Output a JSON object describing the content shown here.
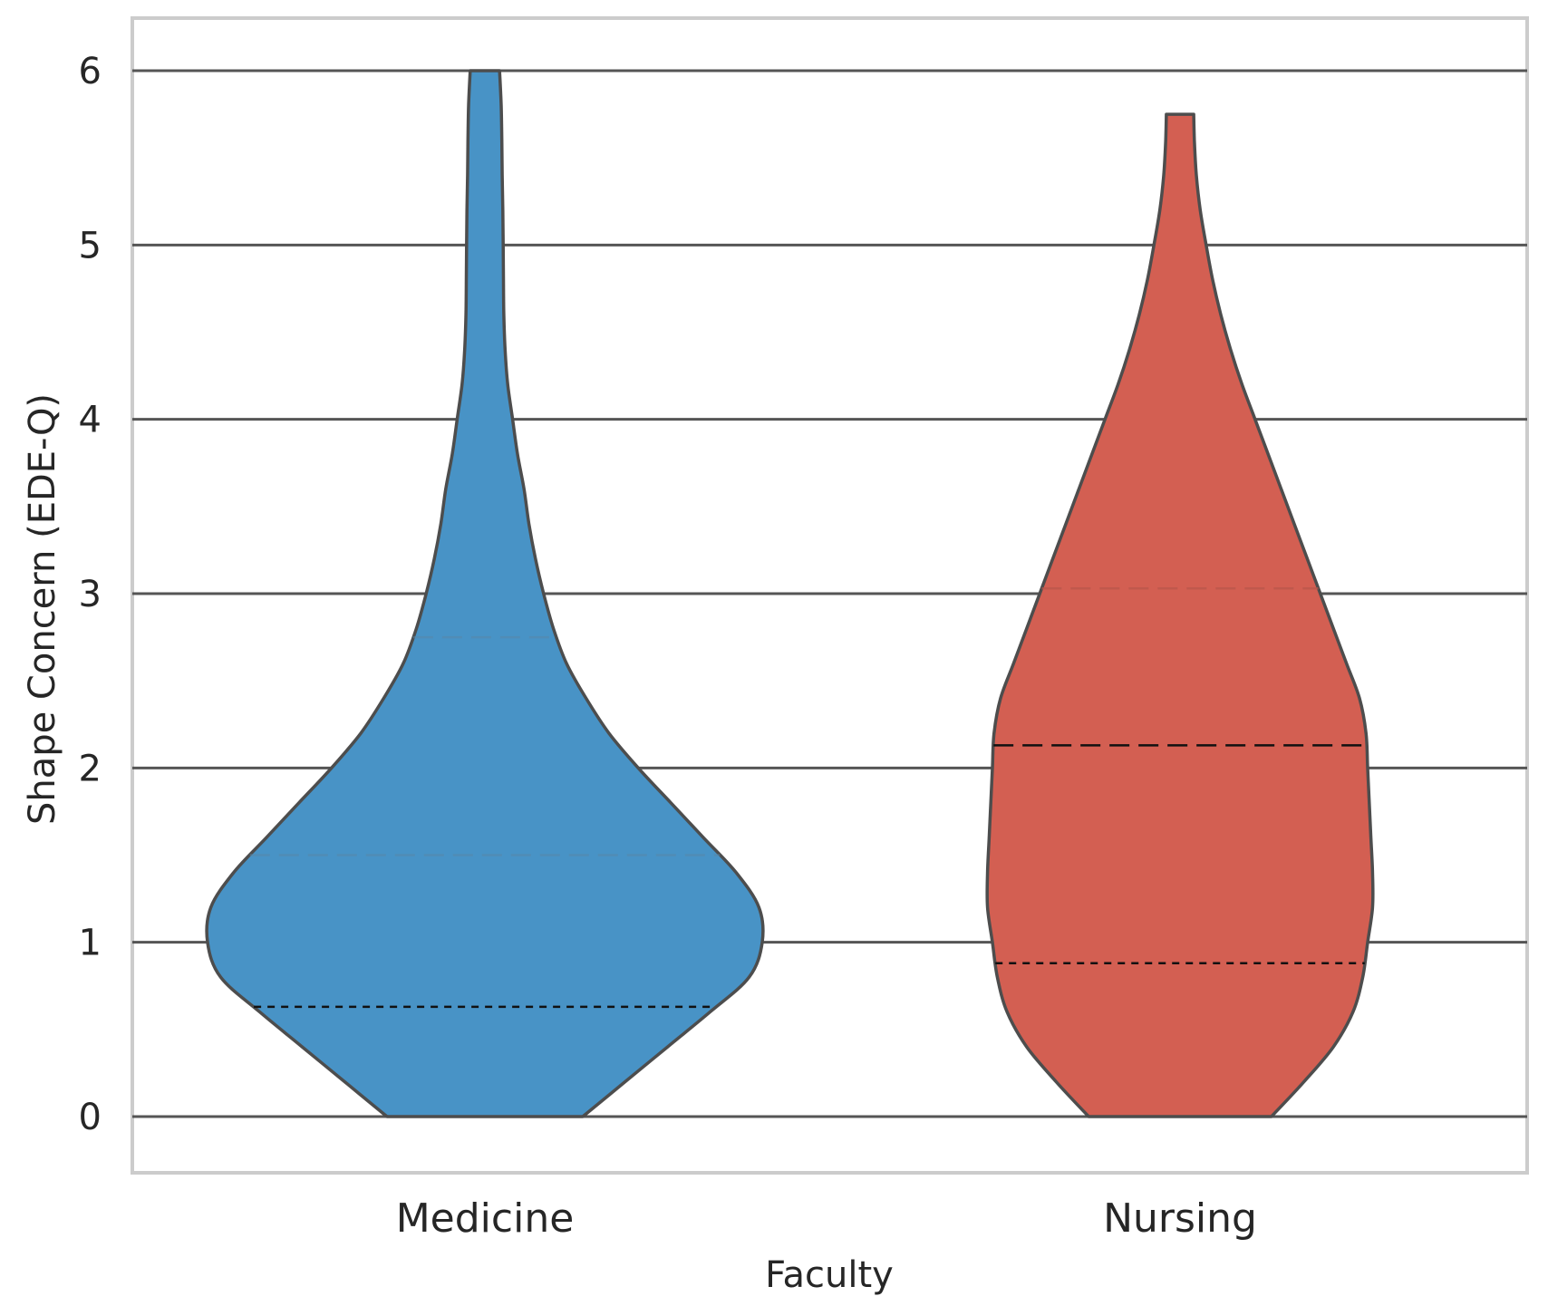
{
  "chart_data": {
    "type": "violin",
    "title": "",
    "xlabel": "Faculty",
    "ylabel": "Shape Concern (EDE-Q)",
    "ylim": [
      -0.3,
      6.3
    ],
    "yticks": [
      "0",
      "1",
      "2",
      "3",
      "4",
      "5",
      "6"
    ],
    "grid": true,
    "categories": [
      "Medicine",
      "Nursing"
    ],
    "colors": [
      "#4893c6",
      "#d35f52"
    ],
    "outline_color": "#4d4d4d",
    "violins": [
      {
        "category": "Medicine",
        "min": 0,
        "max": 6,
        "quartiles": {
          "q1": 0.63,
          "median": 1.5,
          "q3": 2.75
        },
        "density": [
          [
            0,
            0.3
          ],
          [
            0.2,
            0.43
          ],
          [
            0.4,
            0.56
          ],
          [
            0.6,
            0.69
          ],
          [
            0.8,
            0.81
          ],
          [
            1.0,
            0.85
          ],
          [
            1.2,
            0.84
          ],
          [
            1.4,
            0.77
          ],
          [
            1.6,
            0.67
          ],
          [
            1.8,
            0.57
          ],
          [
            2.0,
            0.47
          ],
          [
            2.2,
            0.38
          ],
          [
            2.4,
            0.31
          ],
          [
            2.6,
            0.25
          ],
          [
            2.8,
            0.21
          ],
          [
            3.0,
            0.18
          ],
          [
            3.2,
            0.155
          ],
          [
            3.4,
            0.135
          ],
          [
            3.6,
            0.12
          ],
          [
            3.8,
            0.1
          ],
          [
            4.0,
            0.085
          ],
          [
            4.2,
            0.07
          ],
          [
            4.4,
            0.062
          ],
          [
            4.6,
            0.058
          ],
          [
            4.8,
            0.057
          ],
          [
            5.0,
            0.056
          ],
          [
            5.2,
            0.055
          ],
          [
            5.4,
            0.053
          ],
          [
            5.6,
            0.052
          ],
          [
            5.8,
            0.05
          ],
          [
            6.0,
            0.045
          ]
        ]
      },
      {
        "category": "Nursing",
        "min": 0,
        "max": 5.75,
        "quartiles": {
          "q1": 0.88,
          "median": 2.13,
          "q3": 3.03
        },
        "density": [
          [
            0,
            0.28
          ],
          [
            0.2,
            0.38
          ],
          [
            0.4,
            0.47
          ],
          [
            0.6,
            0.53
          ],
          [
            0.8,
            0.56
          ],
          [
            1.0,
            0.575
          ],
          [
            1.2,
            0.59
          ],
          [
            1.4,
            0.59
          ],
          [
            1.6,
            0.585
          ],
          [
            1.8,
            0.58
          ],
          [
            2.0,
            0.575
          ],
          [
            2.2,
            0.57
          ],
          [
            2.4,
            0.55
          ],
          [
            2.6,
            0.51
          ],
          [
            2.8,
            0.47
          ],
          [
            3.0,
            0.43
          ],
          [
            3.2,
            0.39
          ],
          [
            3.4,
            0.35
          ],
          [
            3.6,
            0.31
          ],
          [
            3.8,
            0.27
          ],
          [
            4.0,
            0.23
          ],
          [
            4.2,
            0.19
          ],
          [
            4.4,
            0.155
          ],
          [
            4.6,
            0.125
          ],
          [
            4.8,
            0.1
          ],
          [
            5.0,
            0.08
          ],
          [
            5.2,
            0.062
          ],
          [
            5.4,
            0.05
          ],
          [
            5.6,
            0.044
          ],
          [
            5.75,
            0.042
          ]
        ]
      }
    ]
  }
}
